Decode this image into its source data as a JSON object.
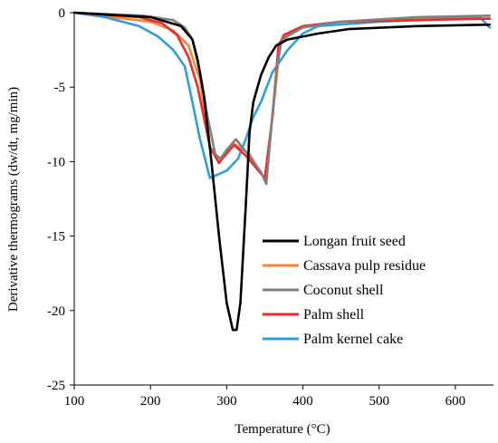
{
  "chart_data": {
    "type": "line",
    "title": "",
    "xlabel": "Temperature (°C)",
    "ylabel": "Derivative thermograms (dw/dt, mg/min)",
    "xlim": [
      100,
      650
    ],
    "ylim": [
      -25,
      0
    ],
    "x_ticks": [
      100,
      200,
      300,
      400,
      500,
      600
    ],
    "y_ticks": [
      0,
      -5,
      -10,
      -15,
      -20,
      -25
    ],
    "x_tick_labels": [
      "100",
      "200",
      "300",
      "400",
      "500",
      "600"
    ],
    "y_tick_labels": [
      "0",
      "-5",
      "-10",
      "-15",
      "-20",
      "-25"
    ],
    "grid": false,
    "legend_position": "bottom-right",
    "series": [
      {
        "name": "Longan fruit seed",
        "color": "#000000",
        "points": [
          [
            100,
            0
          ],
          [
            200,
            -0.3
          ],
          [
            240,
            -0.9
          ],
          [
            255,
            -1.8
          ],
          [
            262,
            -3.2
          ],
          [
            270,
            -5.5
          ],
          [
            280,
            -10
          ],
          [
            290,
            -15
          ],
          [
            300,
            -19.5
          ],
          [
            308,
            -21.3
          ],
          [
            313,
            -21.3
          ],
          [
            318,
            -19.5
          ],
          [
            325,
            -13
          ],
          [
            330,
            -8
          ],
          [
            335,
            -6
          ],
          [
            345,
            -4.2
          ],
          [
            355,
            -3
          ],
          [
            365,
            -2.2
          ],
          [
            380,
            -1.8
          ],
          [
            420,
            -1.4
          ],
          [
            460,
            -1.1
          ],
          [
            550,
            -0.9
          ],
          [
            645,
            -0.8
          ]
        ]
      },
      {
        "name": "Cassava pulp residue",
        "color": "#f4873a",
        "points": [
          [
            100,
            0
          ],
          [
            200,
            -0.6
          ],
          [
            230,
            -1.2
          ],
          [
            250,
            -2.2
          ],
          [
            265,
            -4.5
          ],
          [
            278,
            -9
          ],
          [
            290,
            -10
          ],
          [
            300,
            -9.5
          ],
          [
            310,
            -8.8
          ],
          [
            330,
            -9.5
          ],
          [
            350,
            -11.2
          ],
          [
            360,
            -7
          ],
          [
            370,
            -2.2
          ],
          [
            380,
            -1.5
          ],
          [
            400,
            -1.0
          ],
          [
            450,
            -0.6
          ],
          [
            550,
            -0.4
          ],
          [
            645,
            -0.4
          ]
        ]
      },
      {
        "name": "Coconut shell",
        "color": "#808080",
        "points": [
          [
            100,
            0
          ],
          [
            190,
            -0.2
          ],
          [
            230,
            -0.5
          ],
          [
            245,
            -1.0
          ],
          [
            255,
            -1.8
          ],
          [
            265,
            -4
          ],
          [
            275,
            -7
          ],
          [
            285,
            -9.5
          ],
          [
            292,
            -9.8
          ],
          [
            300,
            -9.2
          ],
          [
            312,
            -8.5
          ],
          [
            320,
            -9
          ],
          [
            335,
            -10
          ],
          [
            345,
            -10.7
          ],
          [
            352,
            -11.5
          ],
          [
            358,
            -8
          ],
          [
            365,
            -4
          ],
          [
            372,
            -1.8
          ],
          [
            400,
            -1.0
          ],
          [
            450,
            -0.6
          ],
          [
            550,
            -0.3
          ],
          [
            645,
            -0.2
          ]
        ]
      },
      {
        "name": "Palm shell",
        "color": "#ec2b2b",
        "points": [
          [
            100,
            0
          ],
          [
            185,
            -0.3
          ],
          [
            215,
            -0.7
          ],
          [
            235,
            -1.5
          ],
          [
            250,
            -3
          ],
          [
            262,
            -5
          ],
          [
            270,
            -7
          ],
          [
            278,
            -9
          ],
          [
            290,
            -10.1
          ],
          [
            300,
            -9.4
          ],
          [
            310,
            -8.9
          ],
          [
            325,
            -9.6
          ],
          [
            340,
            -10.5
          ],
          [
            350,
            -11.1
          ],
          [
            360,
            -7
          ],
          [
            368,
            -2.2
          ],
          [
            375,
            -1.5
          ],
          [
            400,
            -0.9
          ],
          [
            450,
            -0.6
          ],
          [
            550,
            -0.5
          ],
          [
            645,
            -0.4
          ]
        ]
      },
      {
        "name": "Palm kernel cake",
        "color": "#2e9fdc",
        "points": [
          [
            100,
            0
          ],
          [
            140,
            -0.3
          ],
          [
            185,
            -0.9
          ],
          [
            210,
            -1.6
          ],
          [
            230,
            -2.5
          ],
          [
            245,
            -3.6
          ],
          [
            255,
            -6
          ],
          [
            265,
            -8.5
          ],
          [
            278,
            -11.1
          ],
          [
            300,
            -10.6
          ],
          [
            315,
            -9.8
          ],
          [
            325,
            -8.5
          ],
          [
            335,
            -7
          ],
          [
            345,
            -6
          ],
          [
            360,
            -4
          ],
          [
            380,
            -2.5
          ],
          [
            400,
            -1.4
          ],
          [
            420,
            -0.9
          ],
          [
            500,
            -0.6
          ],
          [
            600,
            -0.4
          ],
          [
            632,
            -0.3
          ],
          [
            645,
            -1.0
          ]
        ]
      }
    ]
  }
}
